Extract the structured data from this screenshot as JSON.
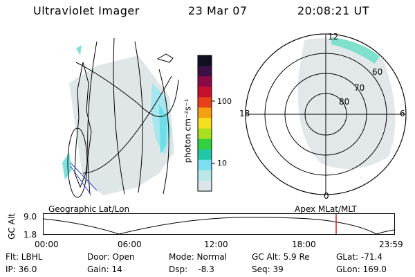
{
  "header": {
    "title": "Ultraviolet Imager",
    "date": "23 Mar 07",
    "time": "20:08:21 UT"
  },
  "colorbar": {
    "unit_label": "photon cm⁻²s⁻¹",
    "ticks": [
      "100",
      "10"
    ],
    "colors": [
      "#101020",
      "#3a1045",
      "#8a0a45",
      "#c8102e",
      "#e8401a",
      "#f5a010",
      "#f5e020",
      "#a8e020",
      "#30d040",
      "#20c8a8",
      "#7ae0f0",
      "#b8e8e8",
      "#dce6ea"
    ]
  },
  "polar_plot": {
    "latitude_labels": [
      "60",
      "70",
      "80"
    ],
    "mlt_labels": {
      "top": "12",
      "left": "18",
      "right": "6",
      "bottom": "0"
    }
  },
  "altitude_strip": {
    "left_label": "Geographic Lat/Lon",
    "right_label": "Apex MLat/MLT",
    "axis_label": "GC Alt",
    "y_ticks": [
      "9.0",
      "1.8"
    ],
    "x_ticks": [
      "00:00",
      "06:00",
      "12:00",
      "18:00",
      "23:59"
    ],
    "marker_color": "#cc2020"
  },
  "status": {
    "row1": [
      {
        "label": "Flt: LBHL"
      },
      {
        "label": "Door: Open"
      },
      {
        "label": "Mode: Normal"
      },
      {
        "label": "GC Alt: 5.9 Re"
      },
      {
        "label": "GLat: -71.4"
      }
    ],
    "row2": [
      {
        "label": "IP: 36.0"
      },
      {
        "label": "Gain: 14"
      },
      {
        "label": "Dsp:    -8.3"
      },
      {
        "label": "Seq: 39"
      },
      {
        "label": "GLon: 169.0"
      }
    ]
  }
}
